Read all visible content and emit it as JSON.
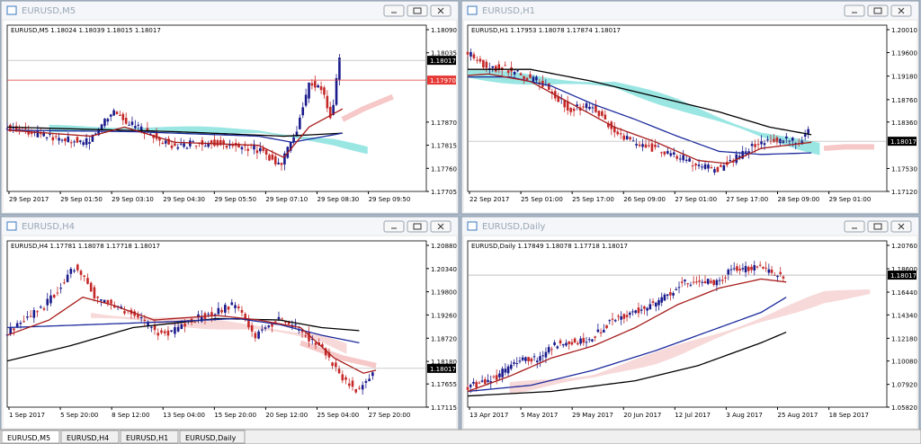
{
  "windows": [
    {
      "title": "EURUSD,M5",
      "info": "EURUSD,M5  1.18024 1.18039 1.18015 1.18017",
      "prices": [
        "1.18090",
        "1.18035",
        "1.17870",
        "1.17815",
        "1.17760",
        "1.17705"
      ],
      "current": "1.18017",
      "line": "1.17970",
      "times": [
        "29 Sep 2017",
        "29 Sep 01:50",
        "29 Sep 03:10",
        "29 Sep 04:30",
        "29 Sep 05:50",
        "29 Sep 07:10",
        "29 Sep 08:30",
        "29 Sep 09:50"
      ]
    },
    {
      "title": "EURUSD,H1",
      "info": "EURUSD,H1  1.17953 1.18078 1.17874 1.18017",
      "prices": [
        "1.20010",
        "1.19600",
        "1.19180",
        "1.18760",
        "1.18360",
        "1.17530",
        "1.17120"
      ],
      "current": "1.18017",
      "times": [
        "22 Sep 2017",
        "25 Sep 01:00",
        "25 Sep 17:00",
        "26 Sep 09:00",
        "27 Sep 01:00",
        "27 Sep 17:00",
        "28 Sep 09:00",
        "29 Sep 01:00"
      ]
    },
    {
      "title": "EURUSD,H4",
      "info": "EURUSD,H4  1.17781 1.18078 1.17718 1.18017",
      "prices": [
        "1.20880",
        "1.20340",
        "1.19800",
        "1.19260",
        "1.18720",
        "1.18180",
        "1.17655",
        "1.17115"
      ],
      "current": "1.18017",
      "times": [
        "1 Sep 2017",
        "5 Sep 20:00",
        "8 Sep 12:00",
        "13 Sep 04:00",
        "15 Sep 20:00",
        "20 Sep 12:00",
        "25 Sep 04:00",
        "27 Sep 20:00"
      ]
    },
    {
      "title": "EURUSD,Daily",
      "info": "EURUSD,Daily  1.17849 1.18078 1.17718 1.18017",
      "prices": [
        "1.20760",
        "1.18600",
        "1.16440",
        "1.14340",
        "1.12180",
        "1.10080",
        "1.07920",
        "1.05820"
      ],
      "current": "1.18017",
      "times": [
        "13 Apr 2017",
        "5 May 2017",
        "29 May 2017",
        "20 Jun 2017",
        "12 Jul 2017",
        "3 Aug 2017",
        "25 Aug 2017",
        "18 Sep 2017"
      ]
    }
  ],
  "tabs": [
    "EURUSD,M5",
    "EURUSD,H4",
    "EURUSD,H1",
    "EURUSD,Daily"
  ]
}
